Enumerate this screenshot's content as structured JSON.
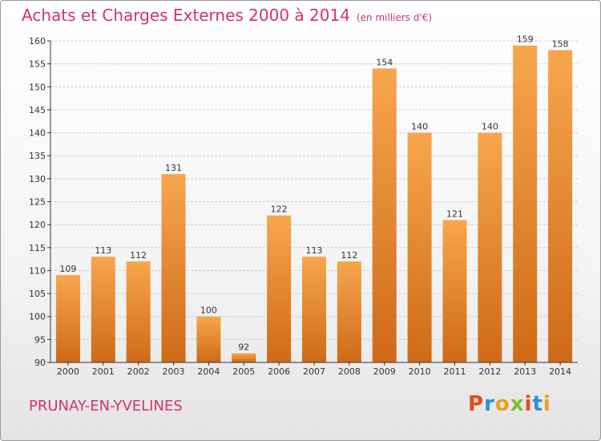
{
  "header": {
    "title": "Achats et Charges Externes 2000 à 2014",
    "subtitle": "(en milliers d'€)"
  },
  "footer": {
    "commune": "PRUNAY-EN-YVELINES",
    "logo_text": "Proxiti",
    "logo_colors": [
      "#e8491d",
      "#2e8fd6",
      "#f29c1f",
      "#7bbf2a",
      "#e8491d",
      "#2e8fd6",
      "#f29c1f"
    ]
  },
  "colors": {
    "bar_light": "#f7a64e",
    "bar_dark": "#cf6a17",
    "grid": "#cccccc",
    "axis": "#333333",
    "text": "#333333"
  },
  "chart_data": {
    "type": "bar",
    "title": "Achats et Charges Externes 2000 à 2014",
    "subtitle": "(en milliers d'€)",
    "categories": [
      "2000",
      "2001",
      "2002",
      "2003",
      "2004",
      "2005",
      "2006",
      "2007",
      "2008",
      "2009",
      "2010",
      "2011",
      "2012",
      "2013",
      "2014"
    ],
    "values": [
      109,
      113,
      112,
      131,
      100,
      92,
      122,
      113,
      112,
      154,
      140,
      121,
      140,
      159,
      158
    ],
    "ylim": [
      90,
      160
    ],
    "yticks": [
      90,
      95,
      100,
      105,
      110,
      115,
      120,
      125,
      130,
      135,
      140,
      145,
      150,
      155,
      160
    ],
    "grid": true,
    "xlabel": "",
    "ylabel": ""
  }
}
